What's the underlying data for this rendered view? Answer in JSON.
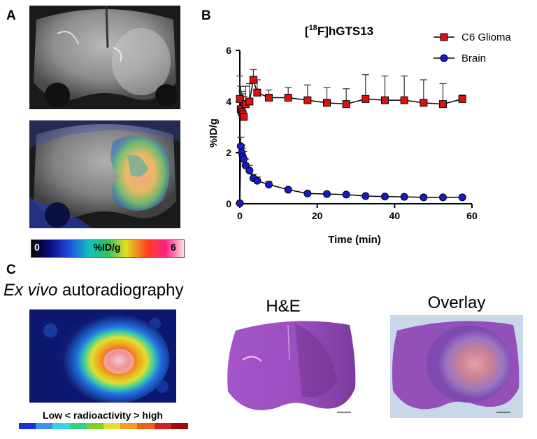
{
  "panels": {
    "a": {
      "label": "A",
      "colorbar": {
        "min": "0",
        "label": "%ID/g",
        "max": "6"
      }
    },
    "b": {
      "label": "B"
    },
    "c": {
      "label": "C",
      "autorad_title_italic": "Ex vivo",
      "autorad_title_rest": " autoradiography",
      "he_title": "H&E",
      "overlay_title": "Overlay",
      "scale_caption": "Low < radioactivity > high",
      "scale_colors": [
        "#1d2fd0",
        "#3f8ff0",
        "#34d4e0",
        "#34d08a",
        "#7fd22a",
        "#e0e02a",
        "#f0a020",
        "#e8641c",
        "#d02020",
        "#a00c0c"
      ]
    }
  },
  "chart_data": {
    "type": "line",
    "title": "[18F]hGTS13",
    "title_parts": {
      "pre": "[",
      "sup": "18",
      "post": "F]hGTS13"
    },
    "xlabel": "Time (min)",
    "ylabel": "%ID/g",
    "xlim": [
      0,
      60
    ],
    "ylim": [
      0,
      6
    ],
    "xticks": [
      "0",
      "20",
      "40",
      "60"
    ],
    "yticks": [
      "0",
      "2",
      "4",
      "6"
    ],
    "legend_position": "top-right",
    "series": [
      {
        "name": "C6 Glioma",
        "marker": "square",
        "color": "#e01010",
        "x": [
          0,
          0.25,
          0.5,
          0.75,
          1,
          1.5,
          2.5,
          3.5,
          4.5,
          7.5,
          12.5,
          17.5,
          22.5,
          27.5,
          32.5,
          37.5,
          42.5,
          47.5,
          52.5,
          57.5
        ],
        "y": [
          4.1,
          3.7,
          3.6,
          3.5,
          3.4,
          3.9,
          4.0,
          4.85,
          4.35,
          4.15,
          4.15,
          4.05,
          3.95,
          3.9,
          4.1,
          4.05,
          4.05,
          3.95,
          3.9,
          4.1
        ],
        "err": [
          0.9,
          0.9,
          0.8,
          0.8,
          0.8,
          0.7,
          0.7,
          0.4,
          0.5,
          0.3,
          0.4,
          0.6,
          0.6,
          0.6,
          0.95,
          0.95,
          0.95,
          0.9,
          0.8,
          0.15
        ]
      },
      {
        "name": "Brain",
        "marker": "circle",
        "color": "#1a1acc",
        "x": [
          0,
          0.25,
          0.5,
          0.75,
          1,
          1.5,
          2.5,
          3.5,
          4.5,
          7.5,
          12.5,
          17.5,
          22.5,
          27.5,
          32.5,
          37.5,
          42.5,
          47.5,
          52.5,
          57.5
        ],
        "y": [
          0.02,
          2.25,
          2.0,
          1.85,
          1.75,
          1.5,
          1.3,
          1.0,
          0.9,
          0.75,
          0.55,
          0.4,
          0.38,
          0.36,
          0.3,
          0.28,
          0.27,
          0.25,
          0.25,
          0.25
        ],
        "err": [
          0,
          0.35,
          0.3,
          0.3,
          0.3,
          0.25,
          0.2,
          0.15,
          0.15,
          0.12,
          0.08,
          0.06,
          0.05,
          0.05,
          0.05,
          0.04,
          0.04,
          0.04,
          0.04,
          0.04
        ]
      }
    ]
  }
}
